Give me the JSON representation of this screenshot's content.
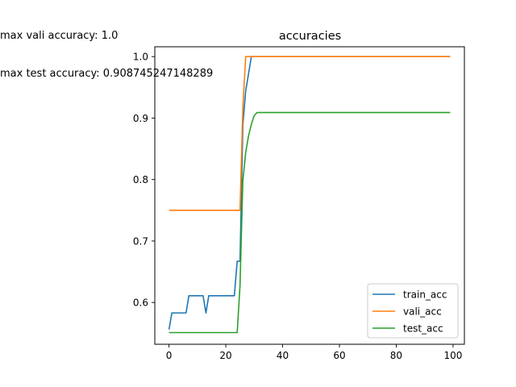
{
  "annotations": {
    "max_vali": "max vali  accuracy: 1.0",
    "max_test": "max test  accuracy: 0.908745247148289"
  },
  "chart_data": {
    "type": "line",
    "title": "accuracies",
    "xlabel": "",
    "ylabel": "",
    "xlim": [
      -5,
      104
    ],
    "ylim": [
      0.532,
      1.016
    ],
    "xticks": [
      0,
      20,
      40,
      60,
      80,
      100
    ],
    "yticks": [
      0.6,
      0.7,
      0.8,
      0.9,
      1.0
    ],
    "ytick_labels": [
      "0.6",
      "0.7",
      "0.8",
      "0.9",
      "1.0"
    ],
    "grid": false,
    "legend_position": "lower right",
    "series": [
      {
        "name": "train_acc",
        "color": "#1f77b4",
        "x": [
          0,
          1,
          2,
          3,
          4,
          5,
          6,
          7,
          8,
          9,
          10,
          11,
          12,
          13,
          14,
          15,
          16,
          17,
          18,
          19,
          20,
          21,
          22,
          23,
          24,
          25,
          26,
          27,
          28,
          29,
          30,
          35,
          40,
          50,
          60,
          70,
          80,
          90,
          99
        ],
        "y": [
          0.556,
          0.583,
          0.583,
          0.583,
          0.583,
          0.583,
          0.583,
          0.611,
          0.611,
          0.611,
          0.611,
          0.611,
          0.611,
          0.583,
          0.611,
          0.611,
          0.611,
          0.611,
          0.611,
          0.611,
          0.611,
          0.611,
          0.611,
          0.611,
          0.667,
          0.667,
          0.889,
          0.944,
          0.972,
          1.0,
          1.0,
          1.0,
          1.0,
          1.0,
          1.0,
          1.0,
          1.0,
          1.0,
          1.0
        ]
      },
      {
        "name": "vali_acc",
        "color": "#ff7f0e",
        "x": [
          0,
          5,
          10,
          15,
          20,
          25,
          26,
          27,
          28,
          29,
          30,
          40,
          50,
          60,
          70,
          80,
          90,
          99
        ],
        "y": [
          0.75,
          0.75,
          0.75,
          0.75,
          0.75,
          0.75,
          0.917,
          1.0,
          1.0,
          1.0,
          1.0,
          1.0,
          1.0,
          1.0,
          1.0,
          1.0,
          1.0,
          1.0
        ]
      },
      {
        "name": "test_acc",
        "color": "#2ca02c",
        "x": [
          0,
          5,
          10,
          15,
          20,
          24,
          25,
          26,
          27,
          28,
          29,
          30,
          31,
          35,
          40,
          50,
          60,
          70,
          80,
          90,
          99
        ],
        "y": [
          0.551,
          0.551,
          0.551,
          0.551,
          0.551,
          0.551,
          0.627,
          0.798,
          0.844,
          0.871,
          0.89,
          0.904,
          0.909,
          0.909,
          0.909,
          0.909,
          0.909,
          0.909,
          0.909,
          0.909,
          0.909
        ]
      }
    ]
  }
}
